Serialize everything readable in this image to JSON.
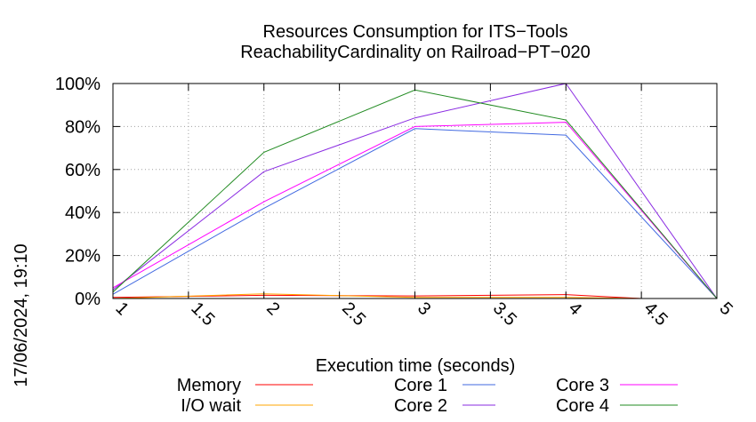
{
  "chart_data": {
    "type": "line",
    "title": "Resources Consumption for ITS−Tools",
    "subtitle": "ReachabilityCardinality on Railroad−PT−020",
    "xlabel": "Execution time (seconds)",
    "ylabel": "",
    "side_label": "17/06/2024, 19:10",
    "xlim": [
      1,
      5
    ],
    "ylim": [
      0,
      100
    ],
    "x_ticks": [
      "1",
      "1.5",
      "2",
      "2.5",
      "3",
      "3.5",
      "4",
      "4.5",
      "5"
    ],
    "y_ticks": [
      "0%",
      "20%",
      "40%",
      "60%",
      "80%",
      "100%"
    ],
    "grid": true,
    "legend_position": "bottom",
    "series": [
      {
        "name": "Memory",
        "color": "#ff0000",
        "x": [
          1,
          2,
          3,
          4,
          4.5
        ],
        "y": [
          0.5,
          1.5,
          1.2,
          1.8,
          0
        ]
      },
      {
        "name": "I/O wait",
        "color": "#ffa500",
        "x": [
          1,
          2,
          3,
          4,
          4.5
        ],
        "y": [
          0,
          2.2,
          0.5,
          0.5,
          0
        ]
      },
      {
        "name": "Core 1",
        "color": "#4169e1",
        "x": [
          1,
          2,
          3,
          4,
          5
        ],
        "y": [
          2,
          42,
          79,
          76,
          0
        ]
      },
      {
        "name": "Core 2",
        "color": "#8a2be2",
        "x": [
          1,
          2,
          3,
          4,
          5
        ],
        "y": [
          4,
          59,
          84,
          100,
          0
        ]
      },
      {
        "name": "Core 3",
        "color": "#ff00ff",
        "x": [
          1,
          2,
          3,
          4,
          5
        ],
        "y": [
          5,
          45,
          80,
          82,
          0
        ]
      },
      {
        "name": "Core 4",
        "color": "#228b22",
        "x": [
          1,
          2,
          3,
          4,
          5
        ],
        "y": [
          3,
          68,
          97,
          83,
          0
        ]
      }
    ]
  }
}
